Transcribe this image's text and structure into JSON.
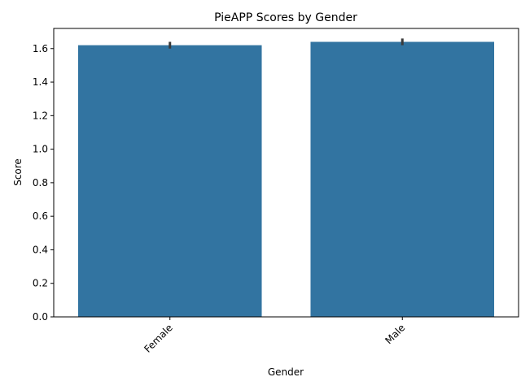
{
  "chart_data": {
    "type": "bar",
    "title": "PieAPP Scores by Gender",
    "xlabel": "Gender",
    "ylabel": "Score",
    "categories": [
      "Female",
      "Male"
    ],
    "values": [
      1.62,
      1.64
    ],
    "error_low": [
      1.6,
      1.62
    ],
    "error_high": [
      1.64,
      1.66
    ],
    "ylim": [
      0,
      1.72
    ],
    "yticks": [
      0.0,
      0.2,
      0.4,
      0.6,
      0.8,
      1.0,
      1.2,
      1.4,
      1.6
    ],
    "ytick_labels": [
      "0.0",
      "0.2",
      "0.4",
      "0.6",
      "0.8",
      "1.0",
      "1.2",
      "1.4",
      "1.6"
    ],
    "grid": false,
    "bar_color": "#3274a1",
    "error_color": "#3a3a3a"
  }
}
